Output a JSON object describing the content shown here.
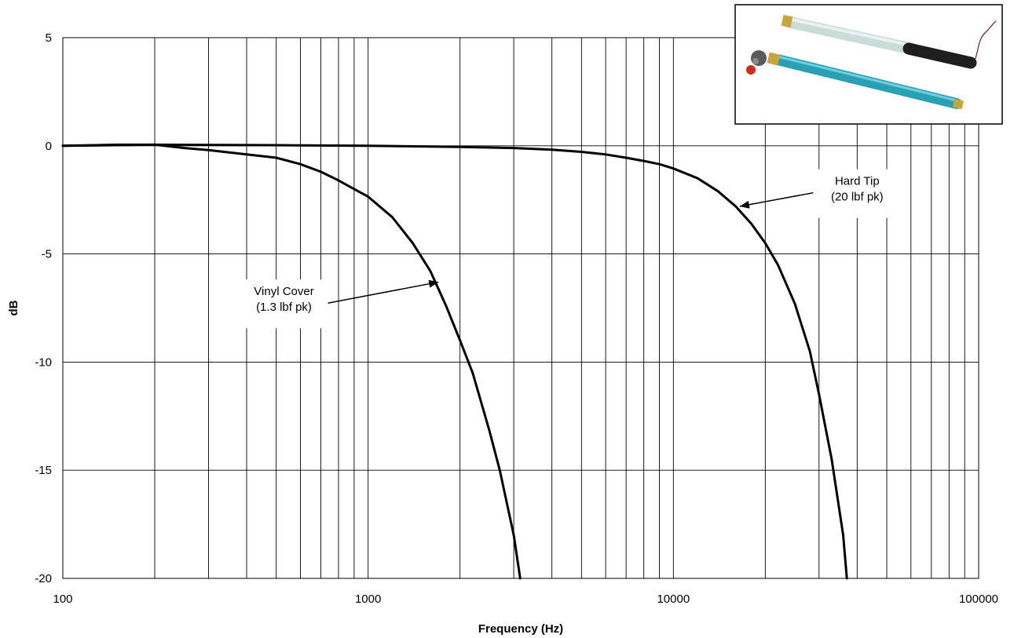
{
  "chart_data": {
    "type": "line",
    "title": "",
    "xlabel": "Frequency (Hz)",
    "ylabel": "dB",
    "x_scale": "log",
    "xlim": [
      100,
      100000
    ],
    "ylim": [
      -20,
      5
    ],
    "x_tick_labels": [
      "100",
      "1000",
      "10000",
      "100000"
    ],
    "y_tick_labels": [
      "5",
      "0",
      "-5",
      "-10",
      "-15",
      "-20"
    ],
    "grid": true,
    "series": [
      {
        "name": "Vinyl Cover (1.3 lbf pk)",
        "x": [
          100,
          150,
          200,
          250,
          300,
          400,
          500,
          600,
          700,
          800,
          900,
          1000,
          1200,
          1400,
          1600,
          1800,
          2000,
          2200,
          2500,
          2700,
          3000,
          3150
        ],
        "y": [
          0,
          0.05,
          0.05,
          -0.1,
          -0.2,
          -0.4,
          -0.55,
          -0.85,
          -1.2,
          -1.6,
          -2.0,
          -2.35,
          -3.3,
          -4.5,
          -5.8,
          -7.4,
          -9.0,
          -10.5,
          -13.2,
          -15.0,
          -18.0,
          -20
        ]
      },
      {
        "name": "Hard Tip (20 lbf pk)",
        "x": [
          100,
          200,
          500,
          1000,
          2000,
          3000,
          4000,
          5000,
          6000,
          7000,
          8000,
          9000,
          10000,
          12000,
          14000,
          16000,
          18000,
          20000,
          22000,
          25000,
          28000,
          30000,
          33000,
          36000,
          37000
        ],
        "y": [
          0,
          0.05,
          0.03,
          0,
          -0.05,
          -0.1,
          -0.18,
          -0.28,
          -0.4,
          -0.55,
          -0.7,
          -0.85,
          -1.05,
          -1.5,
          -2.1,
          -2.8,
          -3.6,
          -4.5,
          -5.5,
          -7.3,
          -9.5,
          -11.5,
          -14.5,
          -18.0,
          -20
        ]
      }
    ],
    "annotations": [
      {
        "lines": [
          "Vinyl Cover",
          "(1.3 lbf pk)"
        ],
        "arrow_to": {
          "x": 1700,
          "y": -6.3
        },
        "label_at": {
          "x": 530,
          "y": -7.2
        }
      },
      {
        "lines": [
          "Hard Tip",
          "(20 lbf pk)"
        ],
        "arrow_to": {
          "x": 16500,
          "y": -2.8
        },
        "label_at": {
          "x": 40000,
          "y": -2.1
        }
      }
    ]
  }
}
